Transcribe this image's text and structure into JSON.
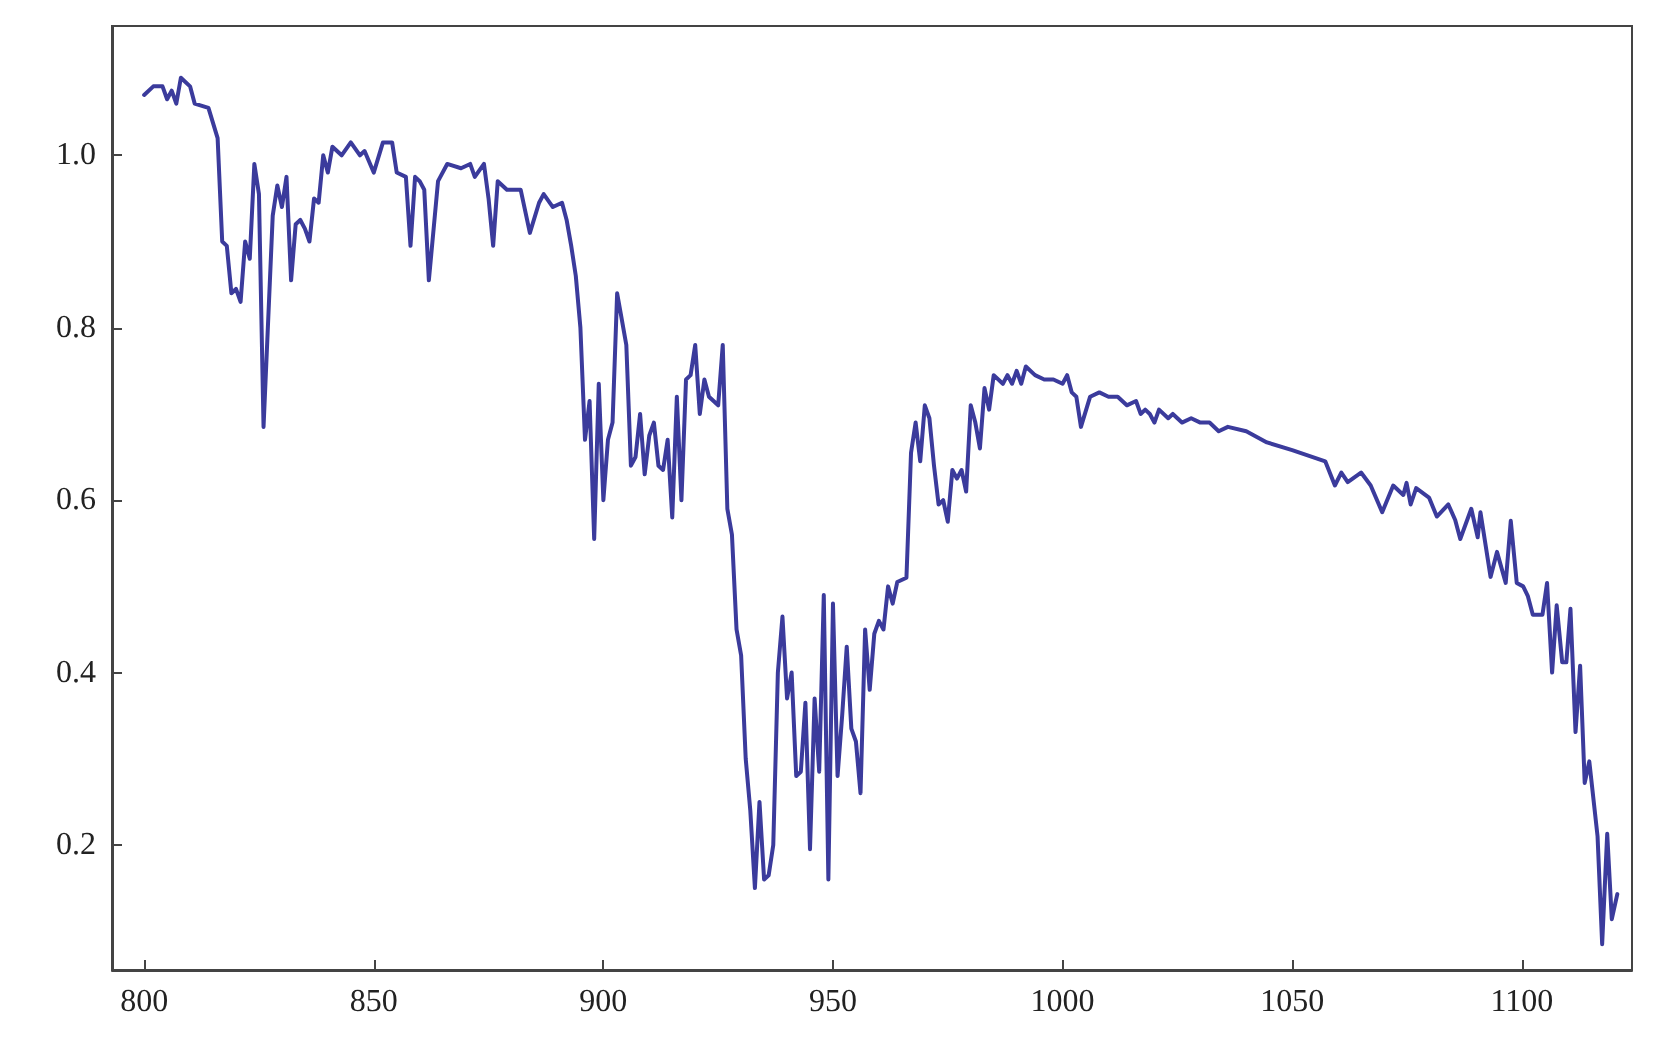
{
  "chart_data": {
    "type": "line",
    "x": [
      800,
      802,
      804,
      805,
      806,
      807,
      808,
      810,
      811,
      814,
      816,
      817,
      818,
      819,
      820,
      821,
      822,
      823,
      824,
      825,
      826,
      828,
      829,
      830,
      831,
      832,
      833,
      834,
      835,
      836,
      837,
      838,
      839,
      840,
      841,
      843,
      845,
      847,
      848,
      850,
      852,
      854,
      855,
      857,
      858,
      859,
      860,
      861,
      862,
      864,
      866,
      869,
      871,
      872,
      874,
      875,
      876,
      877,
      879,
      880,
      882,
      884,
      886,
      887,
      889,
      891,
      892,
      893,
      894,
      895,
      896,
      897,
      898,
      899,
      900,
      901,
      902,
      903,
      904,
      905,
      906,
      907,
      908,
      909,
      910,
      911,
      912,
      913,
      914,
      915,
      916,
      917,
      918,
      919,
      920,
      921,
      922,
      923,
      924,
      925,
      926,
      927,
      928,
      929,
      930,
      931,
      932,
      933,
      934,
      935,
      936,
      937,
      938,
      939,
      940,
      941,
      942,
      943,
      944,
      945,
      946,
      947,
      948,
      949,
      950,
      951,
      952,
      953,
      954,
      955,
      956,
      957,
      958,
      959,
      960,
      961,
      962,
      963,
      964,
      966,
      967,
      968,
      969,
      970,
      971,
      972,
      973,
      974,
      975,
      976,
      977,
      978,
      979,
      980,
      981,
      982,
      983,
      984,
      985,
      987,
      988,
      989,
      990,
      991,
      992,
      994,
      996,
      998,
      1000,
      1001,
      1002,
      1003,
      1004,
      1006,
      1008,
      1010,
      1012,
      1014,
      1016,
      1017,
      1018,
      1019,
      1020,
      1021,
      1023,
      1024,
      1026,
      1028,
      1030,
      1032,
      1034,
      1036,
      1040,
      1044.5,
      1050,
      1057.2,
      1059.3,
      1060.7,
      1062.1,
      1065,
      1067.1,
      1069.6,
      1072,
      1074.2,
      1074.9,
      1075.8,
      1077,
      1079.8,
      1081.5,
      1084,
      1085.5,
      1086.6,
      1089,
      1090.4,
      1091,
      1093.2,
      1094.6,
      1096.5,
      1097.6,
      1098.9,
      1100.3,
      1101.3,
      1102.4,
      1104.5,
      1105.5,
      1106.6,
      1107.6,
      1108.8,
      1109.7,
      1110.6,
      1111.7,
      1112.7,
      1113.7,
      1114.7,
      1116.5,
      1117.5,
      1118.6,
      1119.6,
      1120.8
    ],
    "series": [
      {
        "color": "#3b3b9c",
        "values": [
          1.07,
          1.08,
          1.08,
          1.065,
          1.075,
          1.06,
          1.09,
          1.08,
          1.06,
          1.055,
          1.02,
          0.9,
          0.895,
          0.84,
          0.845,
          0.83,
          0.9,
          0.88,
          0.99,
          0.955,
          0.685,
          0.93,
          0.965,
          0.94,
          0.975,
          0.855,
          0.92,
          0.925,
          0.915,
          0.9,
          0.95,
          0.945,
          1.0,
          0.98,
          1.01,
          1.0,
          1.015,
          1.0,
          1.005,
          0.98,
          1.015,
          1.015,
          0.98,
          0.975,
          0.895,
          0.975,
          0.97,
          0.96,
          0.855,
          0.97,
          0.99,
          0.985,
          0.99,
          0.975,
          0.99,
          0.95,
          0.895,
          0.97,
          0.96,
          0.96,
          0.96,
          0.91,
          0.945,
          0.955,
          0.94,
          0.945,
          0.925,
          0.895,
          0.86,
          0.8,
          0.67,
          0.715,
          0.555,
          0.735,
          0.6,
          0.67,
          0.69,
          0.84,
          0.81,
          0.78,
          0.64,
          0.65,
          0.7,
          0.63,
          0.675,
          0.69,
          0.64,
          0.635,
          0.67,
          0.58,
          0.72,
          0.6,
          0.74,
          0.745,
          0.78,
          0.7,
          0.74,
          0.72,
          0.715,
          0.71,
          0.78,
          0.59,
          0.56,
          0.45,
          0.42,
          0.3,
          0.24,
          0.15,
          0.25,
          0.16,
          0.165,
          0.2,
          0.4,
          0.465,
          0.37,
          0.4,
          0.28,
          0.285,
          0.365,
          0.195,
          0.37,
          0.285,
          0.49,
          0.16,
          0.48,
          0.28,
          0.35,
          0.43,
          0.335,
          0.32,
          0.26,
          0.45,
          0.38,
          0.445,
          0.46,
          0.45,
          0.5,
          0.48,
          0.505,
          0.51,
          0.655,
          0.69,
          0.645,
          0.71,
          0.695,
          0.64,
          0.595,
          0.6,
          0.575,
          0.635,
          0.625,
          0.635,
          0.61,
          0.71,
          0.69,
          0.66,
          0.73,
          0.705,
          0.745,
          0.735,
          0.745,
          0.735,
          0.75,
          0.735,
          0.755,
          0.745,
          0.74,
          0.74,
          0.735,
          0.745,
          0.725,
          0.72,
          0.685,
          0.72,
          0.725,
          0.72,
          0.72,
          0.71,
          0.715,
          0.7,
          0.705,
          0.7,
          0.69,
          0.705,
          0.695,
          0.7,
          0.69,
          0.695,
          0.69,
          0.69,
          0.68,
          0.685,
          0.68,
          0.667,
          0.658,
          0.645,
          0.617,
          0.632,
          0.621,
          0.632,
          0.617,
          0.586,
          0.617,
          0.606,
          0.62,
          0.595,
          0.614,
          0.603,
          0.581,
          0.595,
          0.577,
          0.555,
          0.59,
          0.557,
          0.586,
          0.511,
          0.54,
          0.504,
          0.576,
          0.504,
          0.5,
          0.489,
          0.467,
          0.467,
          0.504,
          0.4,
          0.478,
          0.412,
          0.412,
          0.474,
          0.331,
          0.408,
          0.272,
          0.297,
          0.21,
          0.085,
          0.213,
          0.114,
          0.143
        ]
      }
    ],
    "xlim": [
      793,
      1124
    ],
    "ylim": [
      0.055,
      1.15
    ],
    "xticks": [
      800,
      850,
      900,
      950,
      1000,
      1050,
      1100
    ],
    "yticks": [
      {
        "value": 0.2,
        "label": "0.2"
      },
      {
        "value": 0.4,
        "label": "0.4"
      },
      {
        "value": 0.6,
        "label": "0.6"
      },
      {
        "value": 0.8,
        "label": "0.8"
      },
      {
        "value": 1.0,
        "label": "1.0"
      }
    ],
    "grid": false,
    "marker": "none",
    "line_style": "solid"
  }
}
